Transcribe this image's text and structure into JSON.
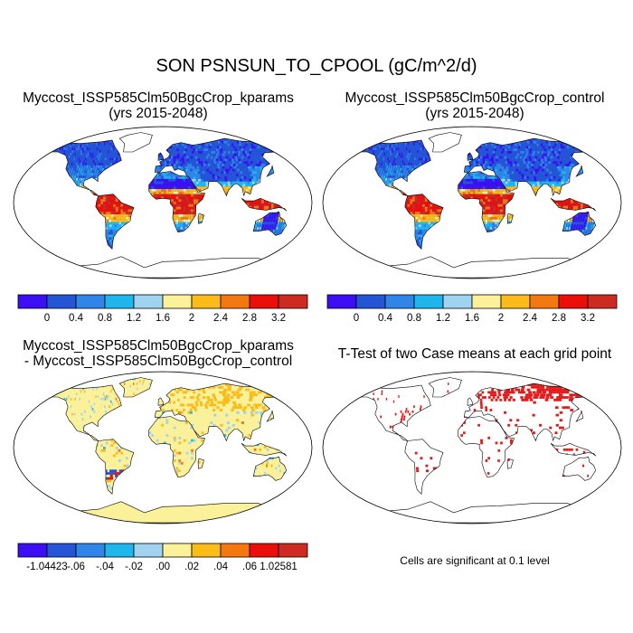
{
  "figure_title": "SON PSNSUN_TO_CPOOL (gC/m^2/d)",
  "panels": {
    "top_left": {
      "title_line1": "Myccost_ISSP585Clm50BgcCrop_kparams",
      "title_line2": "(yrs 2015-2048)",
      "colormap": "absolute"
    },
    "top_right": {
      "title_line1": "Myccost_ISSP585Clm50BgcCrop_control",
      "title_line2": "(yrs 2015-2048)",
      "colormap": "absolute"
    },
    "bottom_left": {
      "title_line1": "Myccost_ISSP585Clm50BgcCrop_kparams",
      "title_line2": "- Myccost_ISSP585Clm50BgcCrop_control",
      "colormap": "difference"
    },
    "bottom_right": {
      "title_line1": "T-Test of two Case means at each grid point",
      "note": "Cells are significant at 0.1 level",
      "colormap": "significance"
    }
  },
  "colorbars": {
    "absolute": {
      "colors": [
        "#3b0ef4",
        "#2355d6",
        "#2f86e8",
        "#1fb6ee",
        "#a0d3ef",
        "#fbf19a",
        "#fbbb19",
        "#f4780f",
        "#ec0f09",
        "#cd2a22"
      ],
      "labels": [
        "0",
        "0.4",
        "0.8",
        "1.2",
        "1.6",
        "2",
        "2.4",
        "2.8",
        "3.2"
      ]
    },
    "difference": {
      "colors": [
        "#3b0ef4",
        "#2355d6",
        "#2f86e8",
        "#1fb6ee",
        "#a0d3ef",
        "#fbf19a",
        "#fbbb19",
        "#f4780f",
        "#ec0f09",
        "#cd2a22"
      ],
      "labels": [
        "-1.04423",
        "-.06",
        "-.04",
        "-.02",
        ".00",
        ".02",
        ".04",
        ".06",
        "1.02581"
      ]
    }
  },
  "map_colors": {
    "ocean": "#ffffff",
    "coast": "#000000",
    "significant": "#e41b1b",
    "ice": "#fbf19a"
  }
}
